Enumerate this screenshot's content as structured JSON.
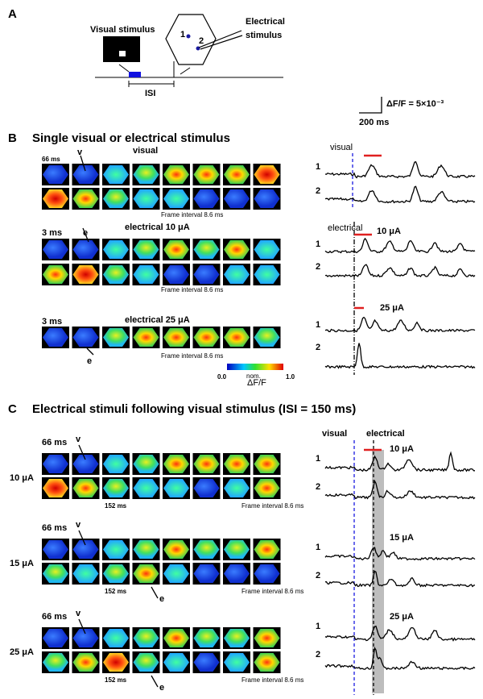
{
  "panel_a": {
    "label": "A",
    "visual_stimulus": "Visual stimulus",
    "electrical_stimulus": [
      "Electrical",
      "stimulus"
    ],
    "site_1": "1",
    "site_2": "2",
    "isi": "ISI"
  },
  "scale_bar": {
    "amplitude": "ΔF/F = 5×10⁻³",
    "time": "200 ms"
  },
  "panel_b": {
    "label": "B",
    "title": "Single visual or electrical stimulus",
    "rows": [
      {
        "time": "66 ms",
        "marker": "v",
        "condition": "visual",
        "frame_interval": "Frame interval 8.6 ms"
      },
      {
        "time": "3 ms",
        "marker": "e",
        "condition": "electrical 10 μA",
        "frame_interval": "Frame interval 8.6 ms"
      },
      {
        "time": "3 ms",
        "marker": "e",
        "condition": "electrical 25 μA",
        "frame_interval": "Frame interval 8.6 ms"
      }
    ],
    "colorbar": {
      "min": "0.0",
      "label": "nom.",
      "unit": "ΔF/F",
      "max": "1.0"
    },
    "traces": [
      {
        "header": "visual",
        "site_1": "1",
        "site_2": "2"
      },
      {
        "header": "electrical",
        "intensity": "10 μA",
        "site_1": "1",
        "site_2": "2"
      },
      {
        "intensity": "25 μA",
        "site_1": "1",
        "site_2": "2"
      }
    ]
  },
  "panel_c": {
    "label": "C",
    "title": "Electrical stimuli following visual stimulus (ISI = 150 ms)",
    "rows": [
      {
        "intensity": "10 μA",
        "time": "66 ms",
        "marker": "v",
        "delay": "152 ms",
        "frame_interval": "Frame interval 8.6 ms"
      },
      {
        "intensity": "15 μA",
        "time": "66 ms",
        "marker": "v",
        "delay": "152 ms",
        "marker_e": "e",
        "frame_interval": "Frame interval 8.6 ms"
      },
      {
        "intensity": "25 μA",
        "time": "66 ms",
        "marker": "v",
        "delay": "152 ms",
        "marker_e": "e",
        "frame_interval": "Frame interval 8.6 ms"
      }
    ],
    "traces": {
      "visual": "visual",
      "electrical": "electrical",
      "groups": [
        {
          "intensity": "10 μA",
          "site_1": "1",
          "site_2": "2"
        },
        {
          "intensity": "15 μA",
          "site_1": "1",
          "site_2": "2"
        },
        {
          "intensity": "25 μA",
          "site_1": "1",
          "site_2": "2"
        }
      ]
    }
  }
}
